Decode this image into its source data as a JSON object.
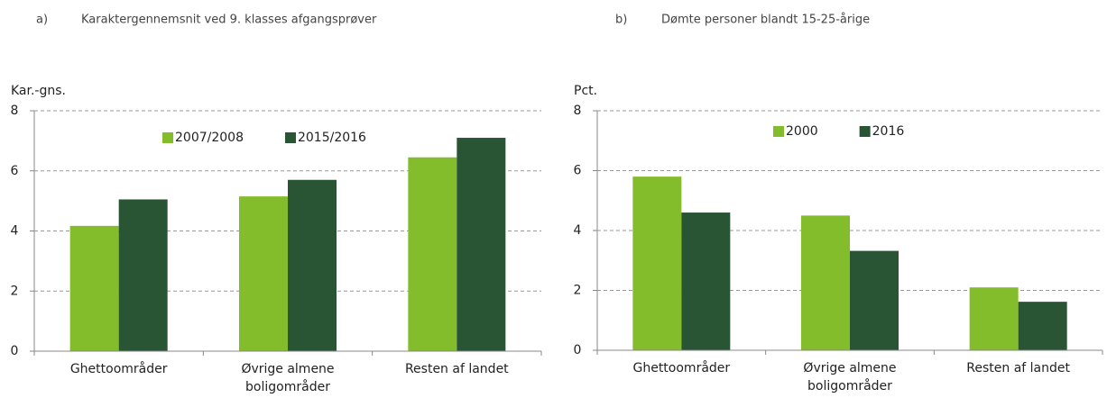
{
  "chart_data": [
    {
      "type": "bar",
      "label": "a)",
      "title": "Karaktergennemsnit ved 9. klasses afgangsprøver",
      "ylabel": "Kar.-gns.",
      "categories": [
        "Ghettoområder",
        "Øvrige almene boligområder",
        "Resten af landet"
      ],
      "series": [
        {
          "name": "2007/2008",
          "color": "#84bd2b",
          "values": [
            4.17,
            5.15,
            6.45
          ]
        },
        {
          "name": "2015/2016",
          "color": "#2a5535",
          "values": [
            5.05,
            5.7,
            7.1
          ]
        }
      ],
      "ylim": [
        0,
        8
      ],
      "yticks": [
        0,
        2,
        4,
        6,
        8
      ],
      "grid": true,
      "legend": "upper center"
    },
    {
      "type": "bar",
      "label": "b)",
      "title": "Dømte personer blandt 15-25-årige",
      "ylabel": "Pct.",
      "categories": [
        "Ghettoområder",
        "Øvrige almene boligområder",
        "Resten af landet"
      ],
      "series": [
        {
          "name": "2000",
          "color": "#84bd2b",
          "values": [
            5.8,
            4.5,
            2.1
          ]
        },
        {
          "name": "2016",
          "color": "#2a5535",
          "values": [
            4.6,
            3.32,
            1.62
          ]
        }
      ],
      "ylim": [
        0,
        8
      ],
      "yticks": [
        0,
        2,
        4,
        6,
        8
      ],
      "grid": true,
      "legend": "upper center"
    }
  ]
}
